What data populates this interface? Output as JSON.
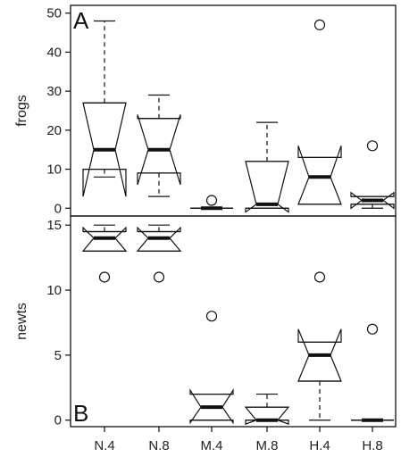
{
  "chart_data": [
    {
      "type": "box",
      "panel_label": "A",
      "ylabel": "frogs",
      "ylim": [
        -2,
        52
      ],
      "yticks": [
        0,
        10,
        20,
        30,
        40,
        50
      ],
      "notched": true,
      "categories": [
        "N.4",
        "N.8",
        "M.4",
        "M.8",
        "H.4",
        "H.8"
      ],
      "boxes": [
        {
          "category": "N.4",
          "whisker_low": 8,
          "q1": 10,
          "median": 15,
          "q3": 27,
          "whisker_high": 48,
          "notch_low": 3,
          "notch_high": 27,
          "outliers": []
        },
        {
          "category": "N.8",
          "whisker_low": 3,
          "q1": 9,
          "median": 15,
          "q3": 23,
          "whisker_high": 29,
          "notch_low": 6,
          "notch_high": 24,
          "outliers": []
        },
        {
          "category": "M.4",
          "whisker_low": 0,
          "q1": 0,
          "median": 0,
          "q3": 0,
          "whisker_high": 0,
          "notch_low": 0,
          "notch_high": 0,
          "outliers": [
            2
          ]
        },
        {
          "category": "M.8",
          "whisker_low": 0,
          "q1": 0,
          "median": 1,
          "q3": 12,
          "whisker_high": 22,
          "notch_low": -1,
          "notch_high": 12,
          "outliers": []
        },
        {
          "category": "H.4",
          "whisker_low": 1,
          "q1": 1,
          "median": 8,
          "q3": 13,
          "whisker_high": 13,
          "notch_low": 1,
          "notch_high": 16,
          "outliers": [
            47
          ]
        },
        {
          "category": "H.8",
          "whisker_low": 0,
          "q1": 1,
          "median": 2,
          "q3": 3,
          "whisker_high": 3,
          "notch_low": 0,
          "notch_high": 4,
          "outliers": [
            16
          ]
        }
      ]
    },
    {
      "type": "box",
      "panel_label": "B",
      "ylabel": "newts",
      "ylim": [
        -0.5,
        15.7
      ],
      "yticks": [
        0,
        5,
        10,
        15
      ],
      "notched": true,
      "categories": [
        "N.4",
        "N.8",
        "M.4",
        "M.8",
        "H.4",
        "H.8"
      ],
      "boxes": [
        {
          "category": "N.4",
          "whisker_low": 13,
          "q1": 13,
          "median": 14,
          "q3": 14.5,
          "whisker_high": 15,
          "notch_low": 13,
          "notch_high": 14.8,
          "outliers": [
            11
          ]
        },
        {
          "category": "N.8",
          "whisker_low": 13,
          "q1": 13,
          "median": 14,
          "q3": 14.5,
          "whisker_high": 15,
          "notch_low": 13,
          "notch_high": 14.8,
          "outliers": [
            11
          ]
        },
        {
          "category": "M.4",
          "whisker_low": 0,
          "q1": 0,
          "median": 1,
          "q3": 2,
          "whisker_high": 2,
          "notch_low": -0.2,
          "notch_high": 2.3,
          "outliers": [
            8
          ]
        },
        {
          "category": "M.8",
          "whisker_low": 0,
          "q1": 0,
          "median": 0,
          "q3": 1,
          "whisker_high": 2,
          "notch_low": -0.3,
          "notch_high": 1.0,
          "outliers": []
        },
        {
          "category": "H.4",
          "whisker_low": 0,
          "q1": 3,
          "median": 5,
          "q3": 6,
          "whisker_high": 6,
          "notch_low": 3,
          "notch_high": 7,
          "outliers": [
            11
          ]
        },
        {
          "category": "H.8",
          "whisker_low": 0,
          "q1": 0,
          "median": 0,
          "q3": 0,
          "whisker_high": 0,
          "notch_low": 0,
          "notch_high": 0,
          "outliers": [
            7
          ]
        }
      ]
    }
  ]
}
